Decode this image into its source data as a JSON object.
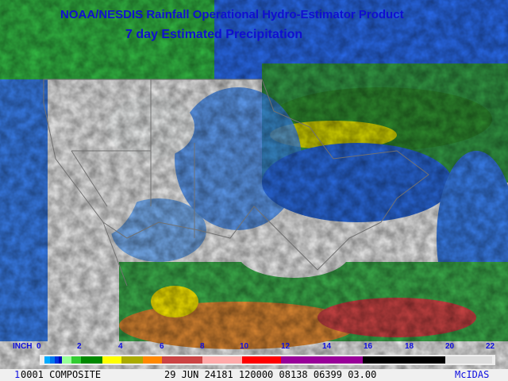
{
  "title_line1": "NOAA/NESDIS Rainfall Operational Hydro-Estimator Product",
  "title_line2": "7 day Estimated Precipitation",
  "legend": {
    "unit": "INCH",
    "ticks": [
      "0",
      "2",
      "4",
      "6",
      "8",
      "10",
      "12",
      "14",
      "16",
      "18",
      "20",
      "22"
    ],
    "colors": [
      "#00aaff",
      "#0077ee",
      "#0033dd",
      "#0000bb",
      "#99ff99",
      "#33cc33",
      "#008800",
      "#ffff00",
      "#aaaa00",
      "#ff8800",
      "#cc4444",
      "#ffaaaa",
      "#ff0000",
      "#990099",
      "#000000",
      "#dddddd"
    ]
  },
  "footer": {
    "frame": "1",
    "id": "0001 COMPOSITE",
    "datetime": "29 JUN 24181 120000 08138 06399 03.00",
    "brand": "McIDAS"
  }
}
